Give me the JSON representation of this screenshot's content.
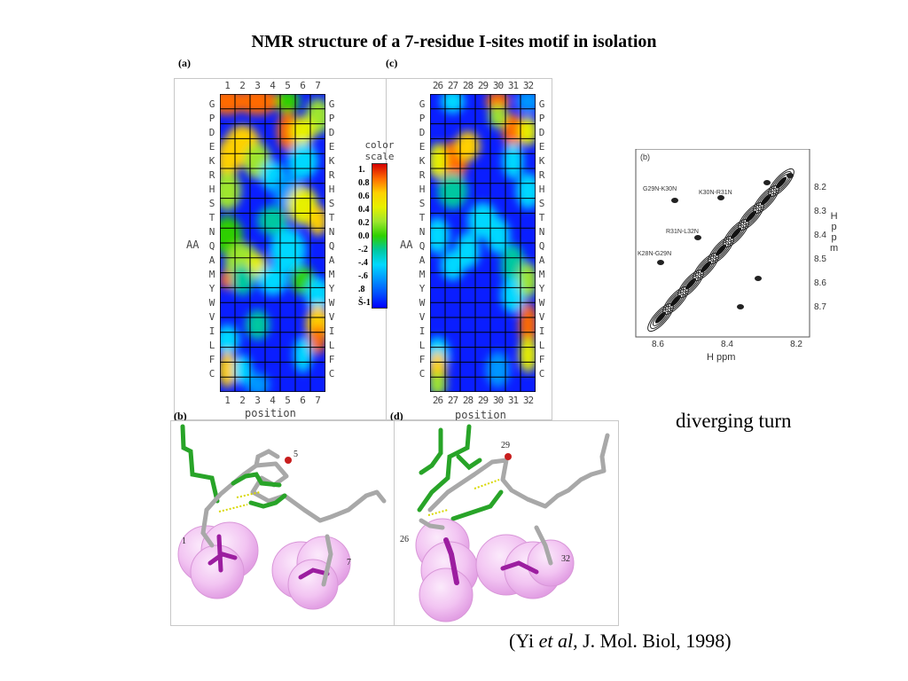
{
  "title": "NMR structure of a 7-residue I-sites motif in isolation",
  "panels": {
    "a": "(a)",
    "c": "(c)",
    "b": "(b)",
    "d": "(d)",
    "nmr_b": "(b)"
  },
  "amino_acids": [
    "G",
    "P",
    "D",
    "E",
    "K",
    "R",
    "H",
    "S",
    "T",
    "N",
    "Q",
    "A",
    "M",
    "Y",
    "W",
    "V",
    "I",
    "L",
    "F",
    "C"
  ],
  "positions_a": [
    "1",
    "2",
    "3",
    "4",
    "5",
    "6",
    "7"
  ],
  "positions_c": [
    "26",
    "27",
    "28",
    "29",
    "30",
    "31",
    "32"
  ],
  "aa_axis_label": "AA",
  "position_axis_label": "position",
  "color_scale": {
    "caption_line1": "color",
    "caption_line2": "scale",
    "ticks": [
      "1.",
      "0.8",
      "0.6",
      "0.4",
      "0.2",
      "0.0",
      "-.2",
      "-.4",
      "-.6",
      ".8",
      "Š-1"
    ],
    "colors": [
      "#d40000",
      "#ff6a00",
      "#ffd000",
      "#e6f000",
      "#9ee62e",
      "#2ed000",
      "#00c8a0",
      "#00d8ff",
      "#0096ff",
      "#0050ff",
      "#0000ff"
    ]
  },
  "nmr": {
    "labels": [
      "G29N-K30N",
      "K30N-R31N",
      "R31N-L32N",
      "K28N-G29N"
    ],
    "y_ticks": [
      "8.2",
      "8.3",
      "8.4",
      "8.5",
      "8.6",
      "8.7"
    ],
    "x_ticks": [
      "8.6",
      "8.4",
      "8.2"
    ],
    "y_axis_label": [
      "H",
      "p",
      "p",
      "m"
    ],
    "x_axis_label": "H ppm"
  },
  "structures": {
    "b_labels": [
      "5",
      "1",
      "7"
    ],
    "d_labels": [
      "29",
      "26",
      "32"
    ]
  },
  "diverging_label": "diverging turn",
  "citation": {
    "prefix": "(Yi ",
    "italic": "et al",
    "suffix": ", J. Mol. Biol, 1998)"
  }
}
